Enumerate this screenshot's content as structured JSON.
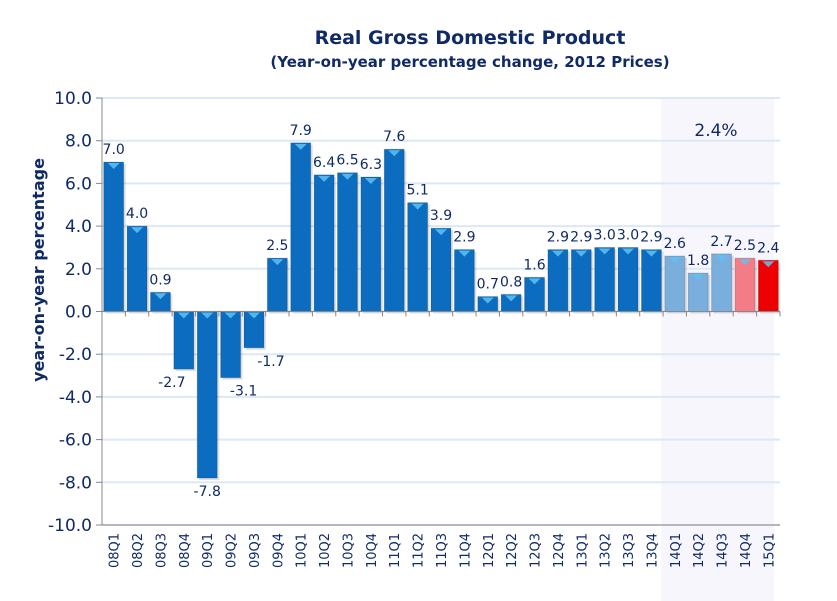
{
  "chart_data": {
    "type": "bar",
    "title": "Real Gross Domestic Product",
    "subtitle": "(Year-on-year percentage change, 2012 Prices)",
    "xlabel": "",
    "ylabel": "year-on-year percentage",
    "ylim": [
      -10,
      10
    ],
    "yticks": [
      "10.0",
      "8.0",
      "6.0",
      "4.0",
      "2.0",
      "0.0",
      "-2.0",
      "-4.0",
      "-6.0",
      "-8.0",
      "-10.0"
    ],
    "grid": true,
    "categories": [
      "08Q1",
      "08Q2",
      "08Q3",
      "08Q4",
      "09Q1",
      "09Q2",
      "09Q3",
      "09Q4",
      "10Q1",
      "10Q2",
      "10Q3",
      "10Q4",
      "11Q1",
      "11Q2",
      "11Q3",
      "11Q4",
      "12Q1",
      "12Q2",
      "12Q3",
      "12Q4",
      "13Q1",
      "13Q2",
      "13Q3",
      "13Q4",
      "14Q1",
      "14Q2",
      "14Q3",
      "14Q4",
      "15Q1"
    ],
    "values": [
      7.0,
      4.0,
      0.9,
      -2.7,
      -7.8,
      -3.1,
      -1.7,
      2.5,
      7.9,
      6.4,
      6.5,
      6.3,
      7.6,
      5.1,
      3.9,
      2.9,
      0.7,
      0.8,
      1.6,
      2.9,
      2.9,
      3.0,
      3.0,
      2.9,
      2.6,
      1.8,
      2.7,
      2.5,
      2.4
    ],
    "data_labels": [
      "7.0",
      "4.0",
      "0.9",
      "-2.7",
      "-7.8",
      "-3.1",
      "-1.7",
      "2.5",
      "7.9",
      "6.4",
      "6.5",
      "6.3",
      "7.6",
      "5.1",
      "3.9",
      "2.9",
      "0.7",
      "0.8",
      "1.6",
      "2.9",
      "2.9",
      "3.0",
      "3.0",
      "2.9",
      "2.6",
      "1.8",
      "2.7",
      "2.5",
      "2.4"
    ],
    "bar_colors": {
      "default": "#0b6cc0",
      "forecast_blue": "#7aaedc",
      "forecast_pink": "#f47c86",
      "latest": "#ee0000"
    },
    "highlight_region": {
      "from": "14Q1",
      "to": "15Q1",
      "label": "2.4%",
      "color": "#f8f6fd"
    }
  }
}
